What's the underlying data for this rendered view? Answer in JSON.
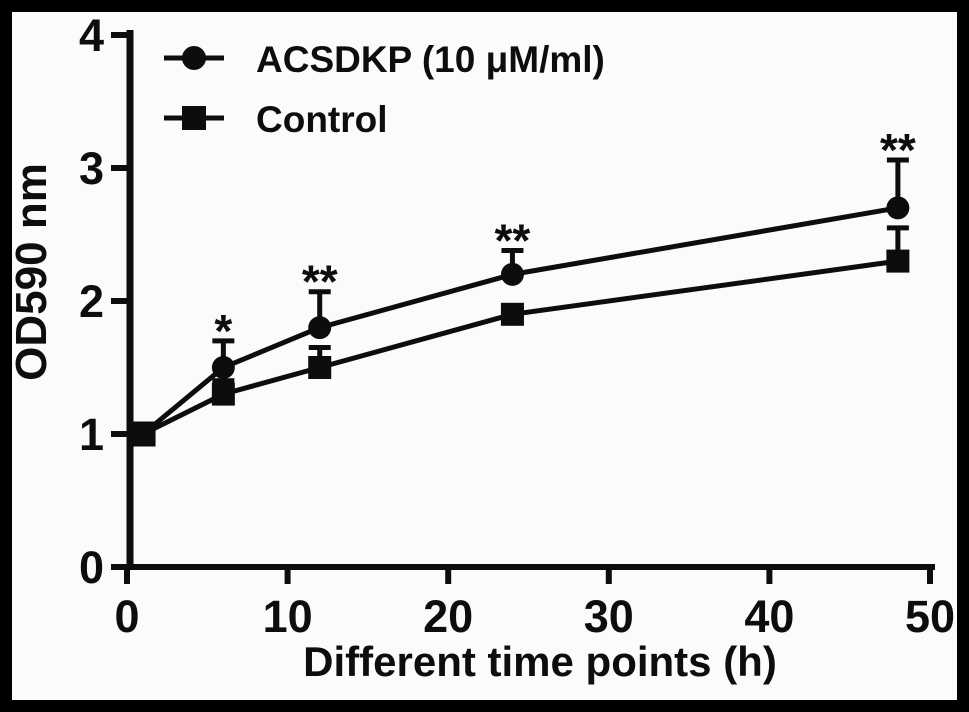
{
  "figure": {
    "frame_color": "#000000",
    "background_color": "#fbfbfb",
    "ink_color": "#0d0d0d"
  },
  "chart_data": {
    "type": "line",
    "title": "",
    "xlabel": "Different time points (h)",
    "ylabel": "OD590 nm",
    "xlim": [
      0,
      50
    ],
    "ylim": [
      0,
      4
    ],
    "xticks": [
      0,
      10,
      20,
      30,
      40,
      50
    ],
    "yticks": [
      0,
      1,
      2,
      3,
      4
    ],
    "grid": false,
    "legend_position": "top-left",
    "x": [
      1,
      6,
      12,
      24,
      48
    ],
    "series": [
      {
        "name": "ACSDKP (10 μM/ml)",
        "marker": "circle",
        "values": [
          1.0,
          1.5,
          1.8,
          2.2,
          2.7
        ],
        "err_up": [
          0,
          0.2,
          0.27,
          0.18,
          0.36
        ]
      },
      {
        "name": "Control",
        "marker": "square",
        "values": [
          1.0,
          1.3,
          1.5,
          1.9,
          2.3
        ],
        "err_up": [
          0,
          0.1,
          0.15,
          0,
          0.25
        ]
      }
    ],
    "annotations": [
      {
        "x": 6,
        "label": "*",
        "applies_to": "ACSDKP (10 μM/ml)"
      },
      {
        "x": 12,
        "label": "**",
        "applies_to": "ACSDKP (10 μM/ml)"
      },
      {
        "x": 24,
        "label": "**",
        "applies_to": "ACSDKP (10 μM/ml)"
      },
      {
        "x": 48,
        "label": "**",
        "applies_to": "ACSDKP (10 μM/ml)"
      }
    ]
  }
}
